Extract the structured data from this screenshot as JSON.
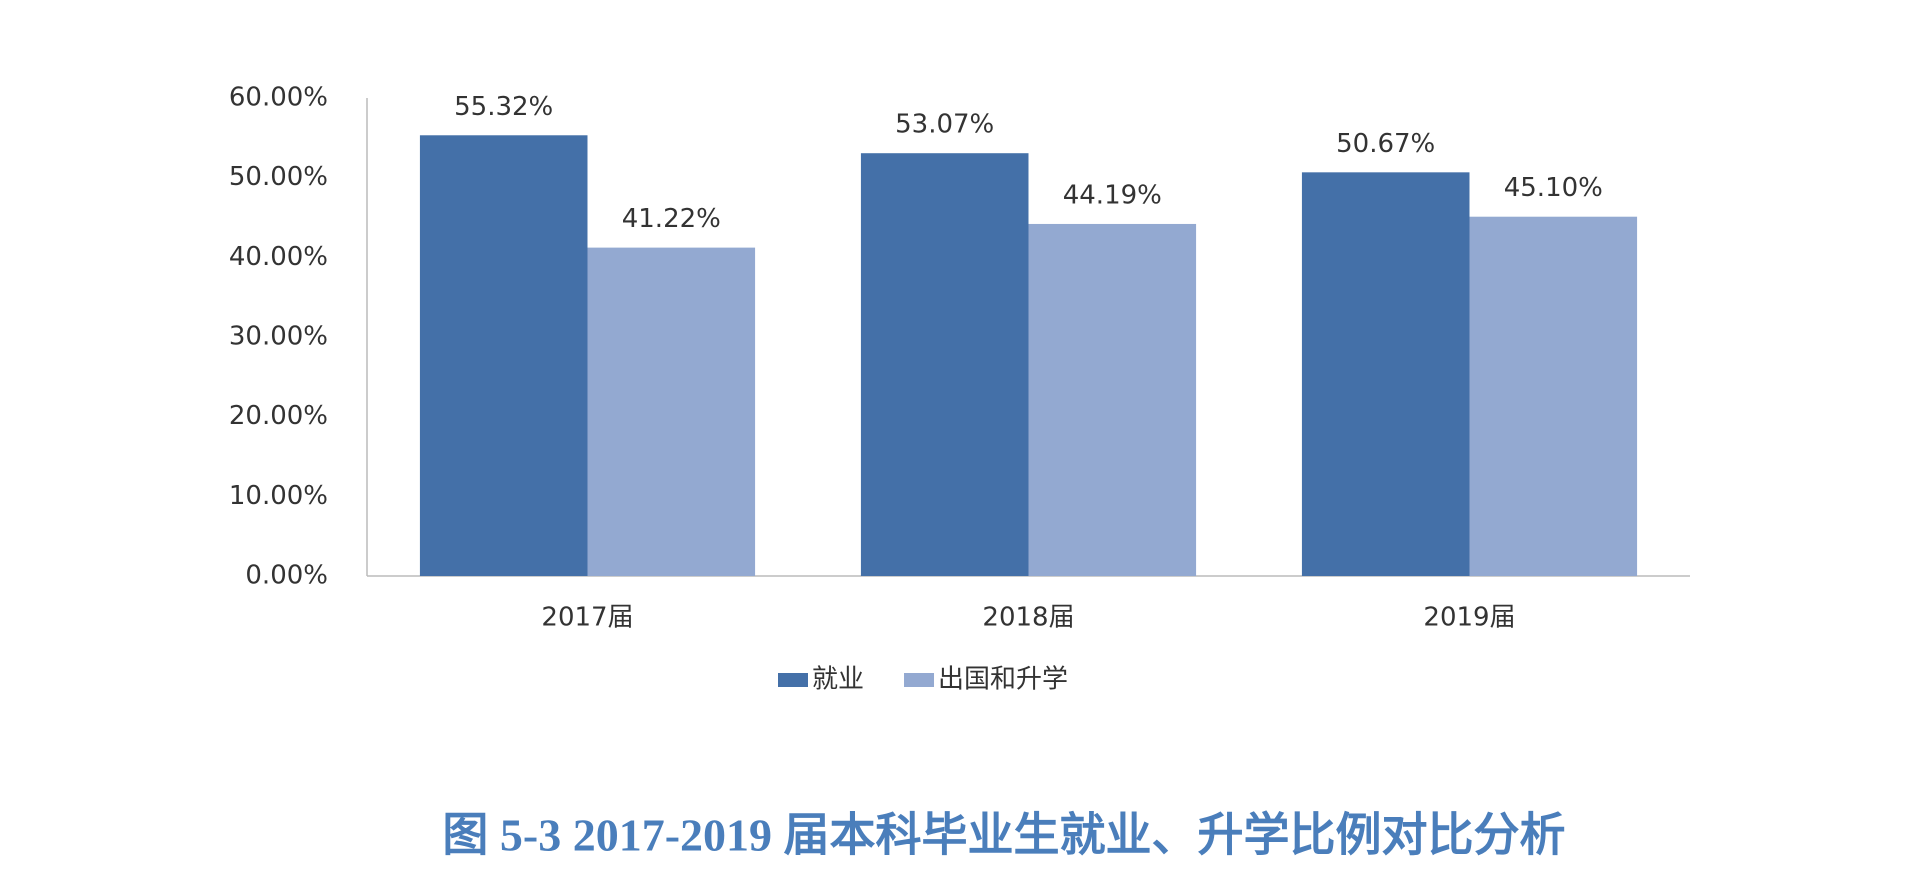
{
  "chart_data": {
    "type": "bar",
    "title": "图 5-3   2017-2019 届本科毕业生就业、升学比例对比分析",
    "categories": [
      "2017届",
      "2018届",
      "2019届"
    ],
    "series": [
      {
        "name": "就业",
        "color": "#4470a8",
        "values": [
          55.32,
          53.07,
          50.67
        ],
        "value_labels": [
          "55.32%",
          "53.07%",
          "50.67%"
        ]
      },
      {
        "name": "出国和升学",
        "color": "#93a9d1",
        "values": [
          41.22,
          44.19,
          45.1
        ],
        "value_labels": [
          "41.22%",
          "44.19%",
          "45.10%"
        ]
      }
    ],
    "ylim": [
      0,
      60
    ],
    "yticks": [
      {
        "value": 0,
        "label": "0.00%"
      },
      {
        "value": 10,
        "label": "10.00%"
      },
      {
        "value": 20,
        "label": "20.00%"
      },
      {
        "value": 30,
        "label": "30.00%"
      },
      {
        "value": 40,
        "label": "40.00%"
      },
      {
        "value": 50,
        "label": "50.00%"
      },
      {
        "value": 60,
        "label": "60.00%"
      }
    ],
    "grid": false,
    "legend": "bottom"
  }
}
